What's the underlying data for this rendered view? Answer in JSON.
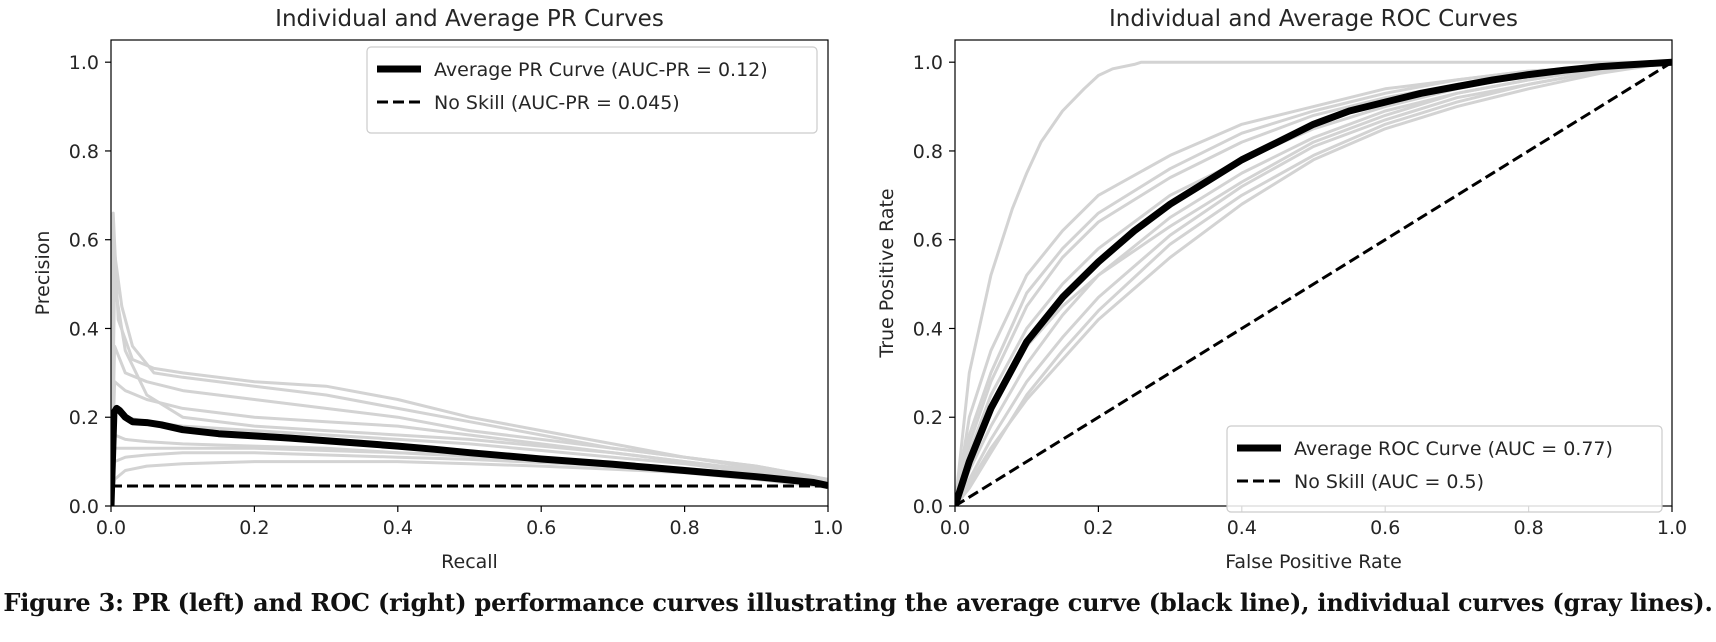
{
  "caption": "Figure 3: PR (left) and ROC (right) performance curves illustrating the average curve (black line), individual curves (gray lines).",
  "colors": {
    "individual": "#d3d3d3",
    "average": "#000000",
    "no_skill": "#000000"
  },
  "chart_data": [
    {
      "type": "line",
      "title": "Individual and Average PR Curves",
      "xlabel": "Recall",
      "ylabel": "Precision",
      "xlim": [
        0,
        1
      ],
      "ylim": [
        0,
        1.05
      ],
      "xticks": [
        "0.0",
        "0.2",
        "0.4",
        "0.6",
        "0.8",
        "1.0"
      ],
      "yticks": [
        "0.0",
        "0.2",
        "0.4",
        "0.6",
        "0.8",
        "1.0"
      ],
      "grid": false,
      "legend": "top-right",
      "series": [
        {
          "name": "Average PR Curve (AUC-PR = 0.12)",
          "role": "average",
          "x": [
            0.0,
            0.004,
            0.008,
            0.012,
            0.02,
            0.03,
            0.05,
            0.07,
            0.1,
            0.15,
            0.2,
            0.25,
            0.3,
            0.35,
            0.4,
            0.45,
            0.5,
            0.55,
            0.6,
            0.65,
            0.7,
            0.75,
            0.8,
            0.85,
            0.9,
            0.95,
            0.98,
            1.0
          ],
          "y": [
            0.0,
            0.21,
            0.22,
            0.215,
            0.2,
            0.19,
            0.188,
            0.183,
            0.172,
            0.163,
            0.158,
            0.153,
            0.147,
            0.141,
            0.135,
            0.128,
            0.12,
            0.113,
            0.106,
            0.1,
            0.094,
            0.087,
            0.08,
            0.073,
            0.066,
            0.058,
            0.053,
            0.046
          ]
        },
        {
          "name": "No Skill (AUC-PR = 0.045)",
          "role": "no_skill",
          "x": [
            0,
            1
          ],
          "y": [
            0.045,
            0.045
          ]
        },
        {
          "role": "individual",
          "x": [
            0.0,
            0.003,
            0.01,
            0.03,
            0.06,
            0.1,
            0.2,
            0.3,
            0.4,
            0.5,
            0.6,
            0.7,
            0.8,
            0.9,
            1.0
          ],
          "y": [
            0.0,
            0.66,
            0.42,
            0.33,
            0.31,
            0.3,
            0.28,
            0.27,
            0.24,
            0.2,
            0.17,
            0.14,
            0.11,
            0.09,
            0.06
          ]
        },
        {
          "role": "individual",
          "x": [
            0.0,
            0.005,
            0.015,
            0.03,
            0.06,
            0.1,
            0.2,
            0.3,
            0.4,
            0.5,
            0.6,
            0.7,
            0.8,
            0.9,
            1.0
          ],
          "y": [
            0.0,
            0.57,
            0.45,
            0.36,
            0.3,
            0.29,
            0.27,
            0.25,
            0.22,
            0.19,
            0.16,
            0.13,
            0.11,
            0.085,
            0.055
          ]
        },
        {
          "role": "individual",
          "x": [
            0.0,
            0.005,
            0.02,
            0.05,
            0.1,
            0.2,
            0.3,
            0.4,
            0.5,
            0.6,
            0.7,
            0.8,
            0.9,
            1.0
          ],
          "y": [
            0.0,
            0.36,
            0.3,
            0.28,
            0.26,
            0.24,
            0.22,
            0.2,
            0.17,
            0.15,
            0.13,
            0.11,
            0.09,
            0.06
          ]
        },
        {
          "role": "individual",
          "x": [
            0.0,
            0.005,
            0.02,
            0.05,
            0.1,
            0.2,
            0.3,
            0.4,
            0.5,
            0.6,
            0.7,
            0.8,
            0.9,
            1.0
          ],
          "y": [
            0.0,
            0.28,
            0.26,
            0.24,
            0.22,
            0.2,
            0.19,
            0.18,
            0.16,
            0.14,
            0.12,
            0.1,
            0.08,
            0.055
          ]
        },
        {
          "role": "individual",
          "x": [
            0.0,
            0.005,
            0.02,
            0.05,
            0.1,
            0.2,
            0.3,
            0.4,
            0.5,
            0.6,
            0.7,
            0.8,
            0.9,
            1.0
          ],
          "y": [
            0.0,
            0.22,
            0.2,
            0.19,
            0.18,
            0.17,
            0.16,
            0.15,
            0.14,
            0.125,
            0.11,
            0.095,
            0.075,
            0.05
          ]
        },
        {
          "role": "individual",
          "x": [
            0.0,
            0.005,
            0.02,
            0.05,
            0.1,
            0.2,
            0.3,
            0.4,
            0.5,
            0.6,
            0.7,
            0.8,
            0.9,
            1.0
          ],
          "y": [
            0.0,
            0.16,
            0.15,
            0.145,
            0.14,
            0.135,
            0.13,
            0.12,
            0.115,
            0.105,
            0.095,
            0.085,
            0.07,
            0.048
          ]
        },
        {
          "role": "individual",
          "x": [
            0.0,
            0.005,
            0.02,
            0.05,
            0.1,
            0.2,
            0.3,
            0.4,
            0.5,
            0.6,
            0.7,
            0.8,
            0.9,
            1.0
          ],
          "y": [
            0.0,
            0.1,
            0.11,
            0.115,
            0.12,
            0.12,
            0.115,
            0.11,
            0.105,
            0.098,
            0.09,
            0.08,
            0.065,
            0.045
          ]
        },
        {
          "role": "individual",
          "x": [
            0.0,
            0.005,
            0.02,
            0.05,
            0.1,
            0.2,
            0.3,
            0.4,
            0.5,
            0.6,
            0.7,
            0.8,
            0.9,
            1.0
          ],
          "y": [
            0.0,
            0.06,
            0.08,
            0.09,
            0.095,
            0.1,
            0.1,
            0.1,
            0.095,
            0.09,
            0.083,
            0.075,
            0.06,
            0.042
          ]
        },
        {
          "role": "individual",
          "x": [
            0.0,
            0.005,
            0.02,
            0.05,
            0.1,
            0.2,
            0.3,
            0.4,
            0.5,
            0.6,
            0.7,
            0.8,
            0.9,
            1.0
          ],
          "y": [
            0.0,
            0.5,
            0.35,
            0.25,
            0.2,
            0.18,
            0.17,
            0.16,
            0.15,
            0.135,
            0.12,
            0.1,
            0.08,
            0.05
          ]
        },
        {
          "role": "individual",
          "x": [
            0.0,
            0.005,
            0.02,
            0.05,
            0.1,
            0.2,
            0.3,
            0.4,
            0.5,
            0.6,
            0.7,
            0.8,
            0.9,
            1.0
          ],
          "y": [
            0.0,
            0.13,
            0.13,
            0.13,
            0.13,
            0.13,
            0.125,
            0.12,
            0.112,
            0.102,
            0.092,
            0.082,
            0.068,
            0.046
          ]
        }
      ]
    },
    {
      "type": "line",
      "title": "Individual and Average ROC Curves",
      "xlabel": "False Positive Rate",
      "ylabel": "True Positive Rate",
      "xlim": [
        0,
        1
      ],
      "ylim": [
        0,
        1.05
      ],
      "xticks": [
        "0.0",
        "0.2",
        "0.4",
        "0.6",
        "0.8",
        "1.0"
      ],
      "yticks": [
        "0.0",
        "0.2",
        "0.4",
        "0.6",
        "0.8",
        "1.0"
      ],
      "grid": false,
      "legend": "bottom-right",
      "series": [
        {
          "name": "Average ROC Curve (AUC = 0.77)",
          "role": "average",
          "x": [
            0.0,
            0.02,
            0.05,
            0.1,
            0.15,
            0.2,
            0.25,
            0.3,
            0.35,
            0.4,
            0.45,
            0.5,
            0.55,
            0.6,
            0.65,
            0.7,
            0.75,
            0.8,
            0.85,
            0.9,
            0.95,
            1.0
          ],
          "y": [
            0.0,
            0.1,
            0.22,
            0.37,
            0.47,
            0.55,
            0.62,
            0.68,
            0.73,
            0.78,
            0.82,
            0.86,
            0.89,
            0.91,
            0.93,
            0.945,
            0.96,
            0.972,
            0.982,
            0.99,
            0.995,
            1.0
          ]
        },
        {
          "name": "No Skill (AUC = 0.5)",
          "role": "no_skill",
          "x": [
            0,
            1
          ],
          "y": [
            0,
            1
          ]
        },
        {
          "role": "individual",
          "x": [
            0.0,
            0.02,
            0.05,
            0.08,
            0.1,
            0.12,
            0.15,
            0.18,
            0.2,
            0.22,
            0.25,
            0.26,
            0.5,
            1.0
          ],
          "y": [
            0.0,
            0.3,
            0.52,
            0.67,
            0.75,
            0.82,
            0.89,
            0.94,
            0.97,
            0.985,
            0.995,
            1.0,
            1.0,
            1.0
          ]
        },
        {
          "role": "individual",
          "x": [
            0.0,
            0.02,
            0.05,
            0.1,
            0.15,
            0.2,
            0.3,
            0.4,
            0.5,
            0.6,
            0.7,
            0.8,
            0.9,
            1.0
          ],
          "y": [
            0.0,
            0.2,
            0.35,
            0.52,
            0.62,
            0.7,
            0.79,
            0.86,
            0.9,
            0.94,
            0.96,
            0.98,
            0.99,
            1.0
          ]
        },
        {
          "role": "individual",
          "x": [
            0.0,
            0.02,
            0.05,
            0.1,
            0.15,
            0.2,
            0.3,
            0.4,
            0.5,
            0.6,
            0.7,
            0.8,
            0.9,
            1.0
          ],
          "y": [
            0.0,
            0.14,
            0.28,
            0.45,
            0.56,
            0.64,
            0.74,
            0.82,
            0.88,
            0.92,
            0.95,
            0.97,
            0.99,
            1.0
          ]
        },
        {
          "role": "individual",
          "x": [
            0.0,
            0.02,
            0.05,
            0.1,
            0.15,
            0.2,
            0.3,
            0.4,
            0.5,
            0.6,
            0.7,
            0.8,
            0.9,
            1.0
          ],
          "y": [
            0.0,
            0.08,
            0.18,
            0.32,
            0.43,
            0.52,
            0.65,
            0.75,
            0.83,
            0.89,
            0.93,
            0.96,
            0.985,
            1.0
          ]
        },
        {
          "role": "individual",
          "x": [
            0.0,
            0.02,
            0.05,
            0.1,
            0.15,
            0.2,
            0.3,
            0.4,
            0.5,
            0.6,
            0.7,
            0.8,
            0.9,
            1.0
          ],
          "y": [
            0.0,
            0.06,
            0.15,
            0.28,
            0.38,
            0.47,
            0.61,
            0.72,
            0.81,
            0.87,
            0.92,
            0.95,
            0.98,
            1.0
          ]
        },
        {
          "role": "individual",
          "x": [
            0.0,
            0.02,
            0.05,
            0.1,
            0.15,
            0.2,
            0.3,
            0.4,
            0.5,
            0.6,
            0.7,
            0.8,
            0.9,
            1.0
          ],
          "y": [
            0.0,
            0.04,
            0.12,
            0.25,
            0.35,
            0.44,
            0.59,
            0.7,
            0.79,
            0.86,
            0.91,
            0.95,
            0.98,
            1.0
          ]
        },
        {
          "role": "individual",
          "x": [
            0.0,
            0.02,
            0.05,
            0.1,
            0.15,
            0.2,
            0.3,
            0.4,
            0.5,
            0.6,
            0.7,
            0.8,
            0.9,
            1.0
          ],
          "y": [
            0.0,
            0.1,
            0.21,
            0.36,
            0.45,
            0.52,
            0.63,
            0.73,
            0.82,
            0.88,
            0.93,
            0.96,
            0.985,
            1.0
          ]
        },
        {
          "role": "individual",
          "x": [
            0.0,
            0.02,
            0.05,
            0.1,
            0.15,
            0.2,
            0.3,
            0.4,
            0.5,
            0.6,
            0.7,
            0.8,
            0.9,
            1.0
          ],
          "y": [
            0.0,
            0.12,
            0.25,
            0.4,
            0.5,
            0.58,
            0.7,
            0.78,
            0.85,
            0.9,
            0.94,
            0.97,
            0.99,
            1.0
          ]
        },
        {
          "role": "individual",
          "x": [
            0.0,
            0.02,
            0.05,
            0.1,
            0.15,
            0.2,
            0.3,
            0.4,
            0.5,
            0.6,
            0.7,
            0.8,
            0.9,
            1.0
          ],
          "y": [
            0.0,
            0.05,
            0.13,
            0.24,
            0.33,
            0.42,
            0.56,
            0.68,
            0.78,
            0.85,
            0.9,
            0.94,
            0.975,
            1.0
          ]
        },
        {
          "role": "individual",
          "x": [
            0.0,
            0.02,
            0.05,
            0.1,
            0.15,
            0.2,
            0.3,
            0.4,
            0.5,
            0.6,
            0.7,
            0.8,
            0.9,
            1.0
          ],
          "y": [
            0.0,
            0.16,
            0.3,
            0.48,
            0.58,
            0.66,
            0.76,
            0.84,
            0.89,
            0.93,
            0.96,
            0.98,
            0.99,
            1.0
          ]
        }
      ]
    }
  ]
}
